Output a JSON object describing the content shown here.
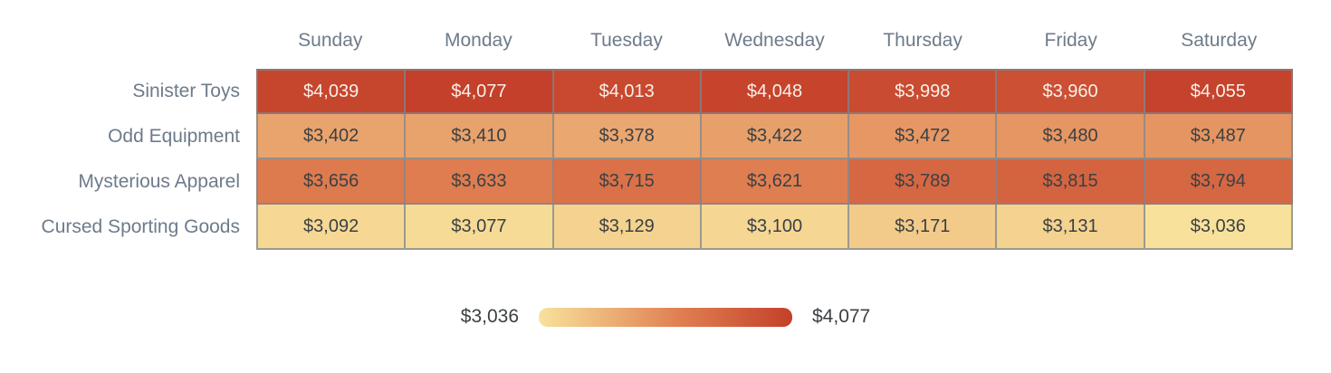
{
  "chart_data": {
    "type": "heatmap",
    "columns": [
      "Sunday",
      "Monday",
      "Tuesday",
      "Wednesday",
      "Thursday",
      "Friday",
      "Saturday"
    ],
    "rows": [
      "Sinister Toys",
      "Odd Equipment",
      "Mysterious Apparel",
      "Cursed Sporting Goods"
    ],
    "series": [
      {
        "name": "Sinister Toys",
        "values": [
          4039,
          4077,
          4013,
          4048,
          3998,
          3960,
          4055
        ]
      },
      {
        "name": "Odd Equipment",
        "values": [
          3402,
          3410,
          3378,
          3422,
          3472,
          3480,
          3487
        ]
      },
      {
        "name": "Mysterious Apparel",
        "values": [
          3656,
          3633,
          3715,
          3621,
          3789,
          3815,
          3794
        ]
      },
      {
        "name": "Cursed Sporting Goods",
        "values": [
          3092,
          3077,
          3129,
          3100,
          3171,
          3131,
          3036
        ]
      }
    ],
    "value_prefix": "$",
    "min": 3036,
    "max": 4077,
    "legend": {
      "min_label": "$3,036",
      "max_label": "$4,077"
    },
    "colors": {
      "scale_low": "#F8E29B",
      "scale_mid": "#E08052",
      "scale_high": "#C4402A",
      "text_dark": "#3C4043",
      "text_light": "#F7F1EA",
      "label": "#6E7B8A",
      "border": "rgba(125,133,142,0.75)"
    },
    "layout": {
      "grid": false,
      "legend_position": "bottom-center",
      "light_text_threshold": 0.8
    }
  }
}
